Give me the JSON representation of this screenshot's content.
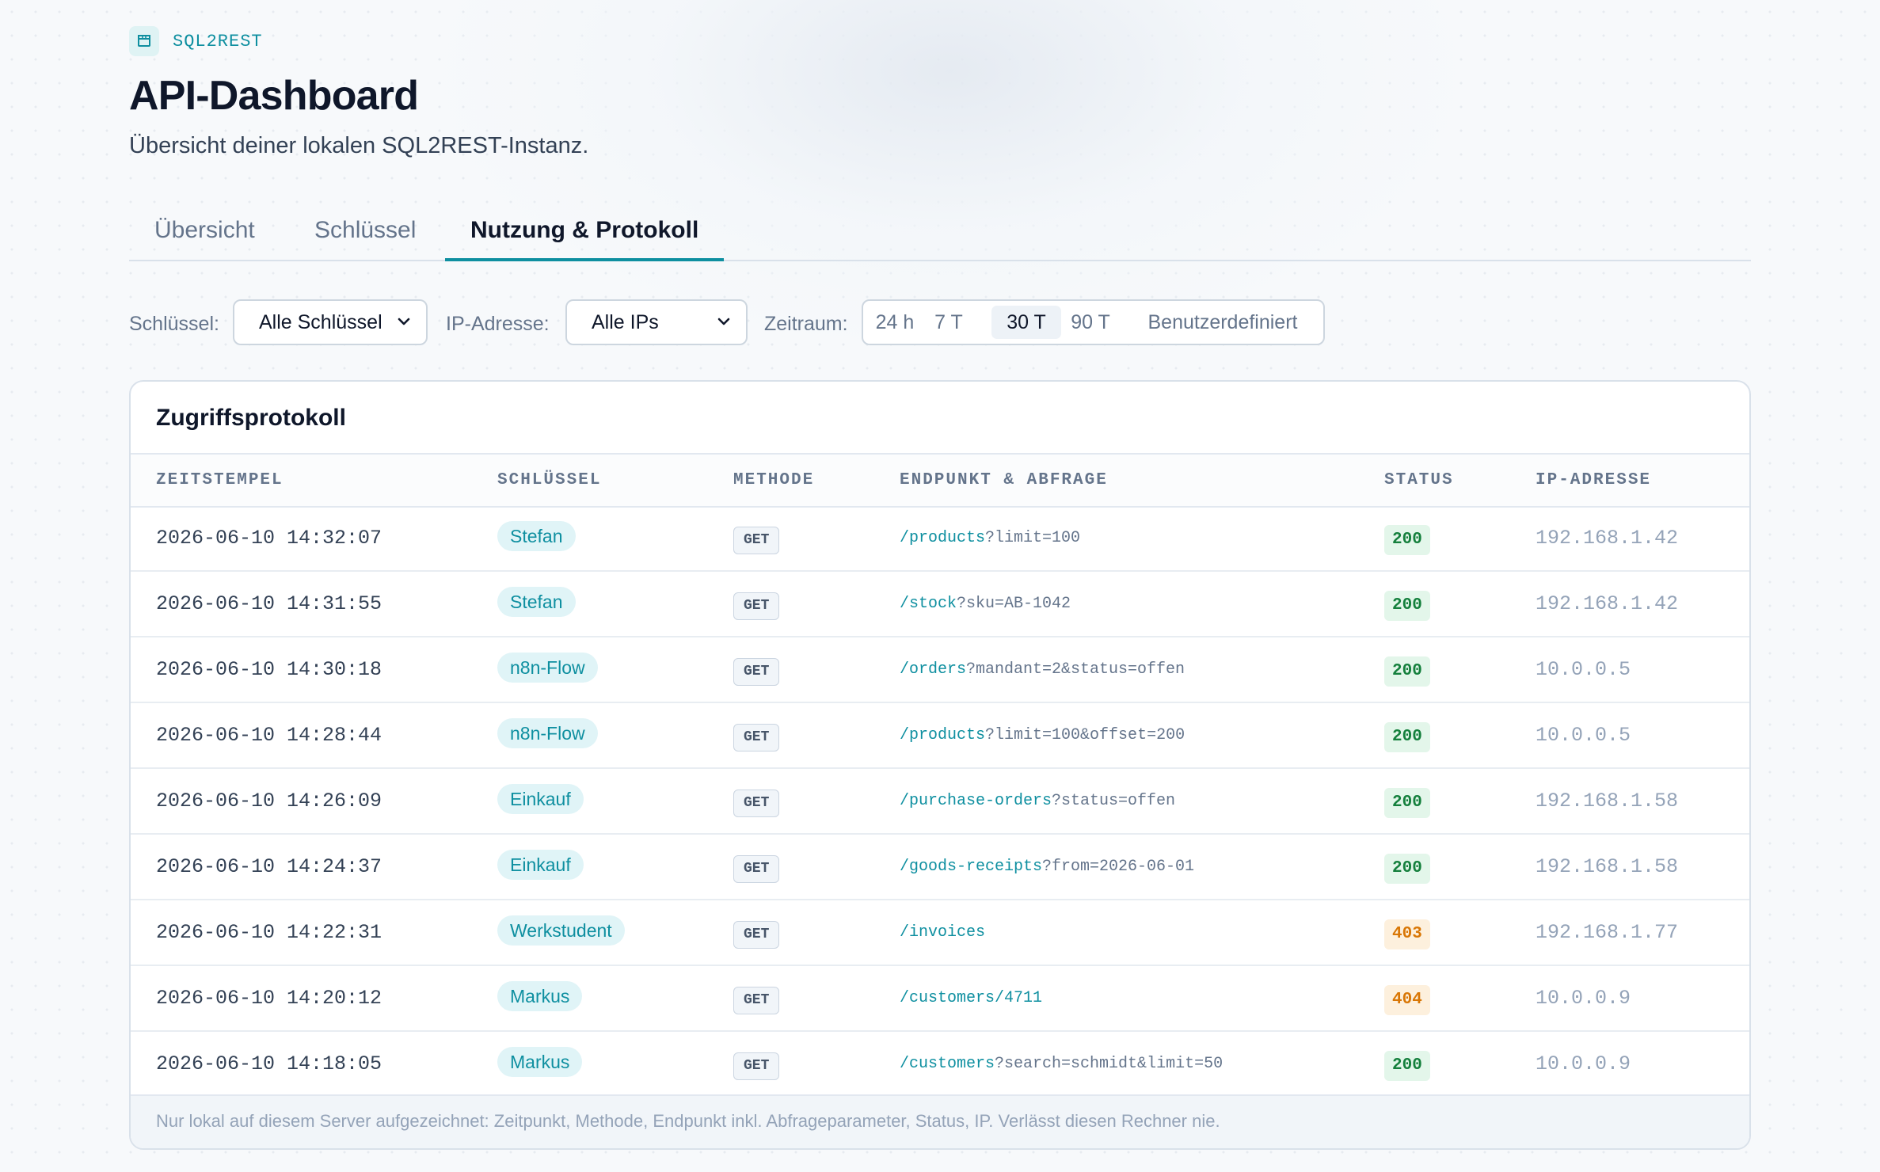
{
  "brand": {
    "name": "SQL2REST",
    "icon": "database-icon"
  },
  "header": {
    "title": "API-Dashboard",
    "subtitle": "Übersicht deiner lokalen SQL2REST-Instanz."
  },
  "tabs": [
    {
      "label": "Übersicht",
      "active": false
    },
    {
      "label": "Schlüssel",
      "active": false
    },
    {
      "label": "Nutzung & Protokoll",
      "active": true
    }
  ],
  "filters": {
    "key_label": "Schlüssel:",
    "key_value": "Alle Schlüssel",
    "ip_label": "IP-Adresse:",
    "ip_value": "Alle IPs",
    "range_label": "Zeitraum:",
    "range_options": [
      "24 h",
      "7 T",
      "30 T",
      "90 T",
      "Benutzerdefiniert"
    ],
    "range_selected": "30 T"
  },
  "log": {
    "title": "Zugriffsprotokoll",
    "columns": [
      "ZEITSTEMPEL",
      "SCHLÜSSEL",
      "METHODE",
      "ENDPUNKT & ABFRAGE",
      "STATUS",
      "IP-ADRESSE"
    ],
    "rows": [
      {
        "timestamp": "2026-06-10 14:32:07",
        "key": "Stefan",
        "method": "GET",
        "path": "/products",
        "query": "?limit=100",
        "status": "200",
        "ip": "192.168.1.42"
      },
      {
        "timestamp": "2026-06-10 14:31:55",
        "key": "Stefan",
        "method": "GET",
        "path": "/stock",
        "query": "?sku=AB-1042",
        "status": "200",
        "ip": "192.168.1.42"
      },
      {
        "timestamp": "2026-06-10 14:30:18",
        "key": "n8n-Flow",
        "method": "GET",
        "path": "/orders",
        "query": "?mandant=2&status=offen",
        "status": "200",
        "ip": "10.0.0.5"
      },
      {
        "timestamp": "2026-06-10 14:28:44",
        "key": "n8n-Flow",
        "method": "GET",
        "path": "/products",
        "query": "?limit=100&offset=200",
        "status": "200",
        "ip": "10.0.0.5"
      },
      {
        "timestamp": "2026-06-10 14:26:09",
        "key": "Einkauf",
        "method": "GET",
        "path": "/purchase-orders",
        "query": "?status=offen",
        "status": "200",
        "ip": "192.168.1.58"
      },
      {
        "timestamp": "2026-06-10 14:24:37",
        "key": "Einkauf",
        "method": "GET",
        "path": "/goods-receipts",
        "query": "?from=2026-06-01",
        "status": "200",
        "ip": "192.168.1.58"
      },
      {
        "timestamp": "2026-06-10 14:22:31",
        "key": "Werkstudent",
        "method": "GET",
        "path": "/invoices",
        "query": "",
        "status": "403",
        "ip": "192.168.1.77"
      },
      {
        "timestamp": "2026-06-10 14:20:12",
        "key": "Markus",
        "method": "GET",
        "path": "/customers/4711",
        "query": "",
        "status": "404",
        "ip": "10.0.0.9"
      },
      {
        "timestamp": "2026-06-10 14:18:05",
        "key": "Markus",
        "method": "GET",
        "path": "/customers",
        "query": "?search=schmidt&limit=50",
        "status": "200",
        "ip": "10.0.0.9"
      }
    ],
    "footnote": "Nur lokal auf diesem Server aufgezeichnet: Zeitpunkt, Methode, Endpunkt inkl. Abfrageparameter, Status, IP. Verlässt diesen Rechner nie."
  },
  "colors": {
    "accent": "#0e8fa0",
    "status_ok": "#15803d",
    "status_warn": "#d97706"
  }
}
